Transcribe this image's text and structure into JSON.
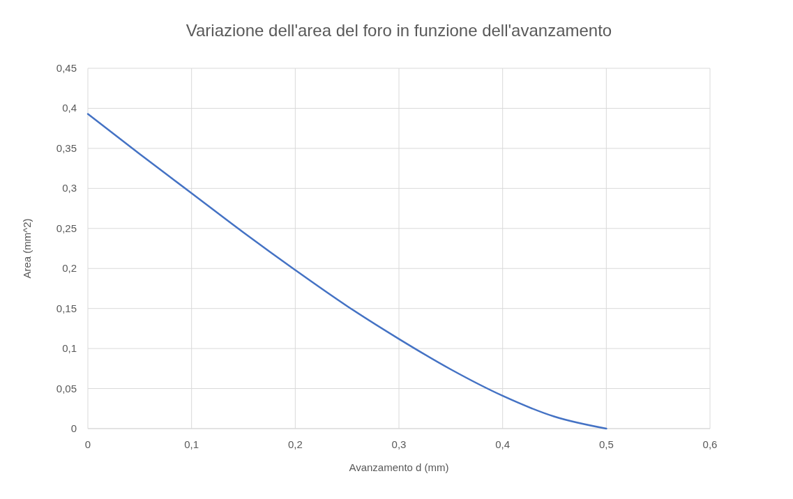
{
  "chart_data": {
    "type": "line",
    "title": "Variazione dell'area del foro in funzione dell'avanzamento",
    "xlabel": "Avanzamento d (mm)",
    "ylabel": "Area (mm^2)",
    "series": [
      {
        "color": "#4472c4",
        "x": [
          0,
          0.05,
          0.1,
          0.15,
          0.2,
          0.25,
          0.3,
          0.35,
          0.4,
          0.45,
          0.5
        ],
        "values": [
          0.393,
          0.343,
          0.294,
          0.245,
          0.198,
          0.153,
          0.112,
          0.074,
          0.041,
          0.015,
          0
        ]
      }
    ],
    "xlim": [
      0,
      0.6
    ],
    "xticks": [
      {
        "value": 0,
        "label": "0"
      },
      {
        "value": 0.1,
        "label": "0,1"
      },
      {
        "value": 0.2,
        "label": "0,2"
      },
      {
        "value": 0.3,
        "label": "0,3"
      },
      {
        "value": 0.4,
        "label": "0,4"
      },
      {
        "value": 0.5,
        "label": "0,5"
      },
      {
        "value": 0.6,
        "label": "0,6"
      }
    ],
    "ylim": [
      0,
      0.45
    ],
    "yticks": [
      {
        "value": 0,
        "label": "0"
      },
      {
        "value": 0.05,
        "label": "0,05"
      },
      {
        "value": 0.1,
        "label": "0,1"
      },
      {
        "value": 0.15,
        "label": "0,15"
      },
      {
        "value": 0.2,
        "label": "0,2"
      },
      {
        "value": 0.25,
        "label": "0,25"
      },
      {
        "value": 0.3,
        "label": "0,3"
      },
      {
        "value": 0.35,
        "label": "0,35"
      },
      {
        "value": 0.4,
        "label": "0,4"
      },
      {
        "value": 0.45,
        "label": "0,45"
      }
    ],
    "grid": true,
    "marker": "none",
    "line_style": "solid"
  }
}
